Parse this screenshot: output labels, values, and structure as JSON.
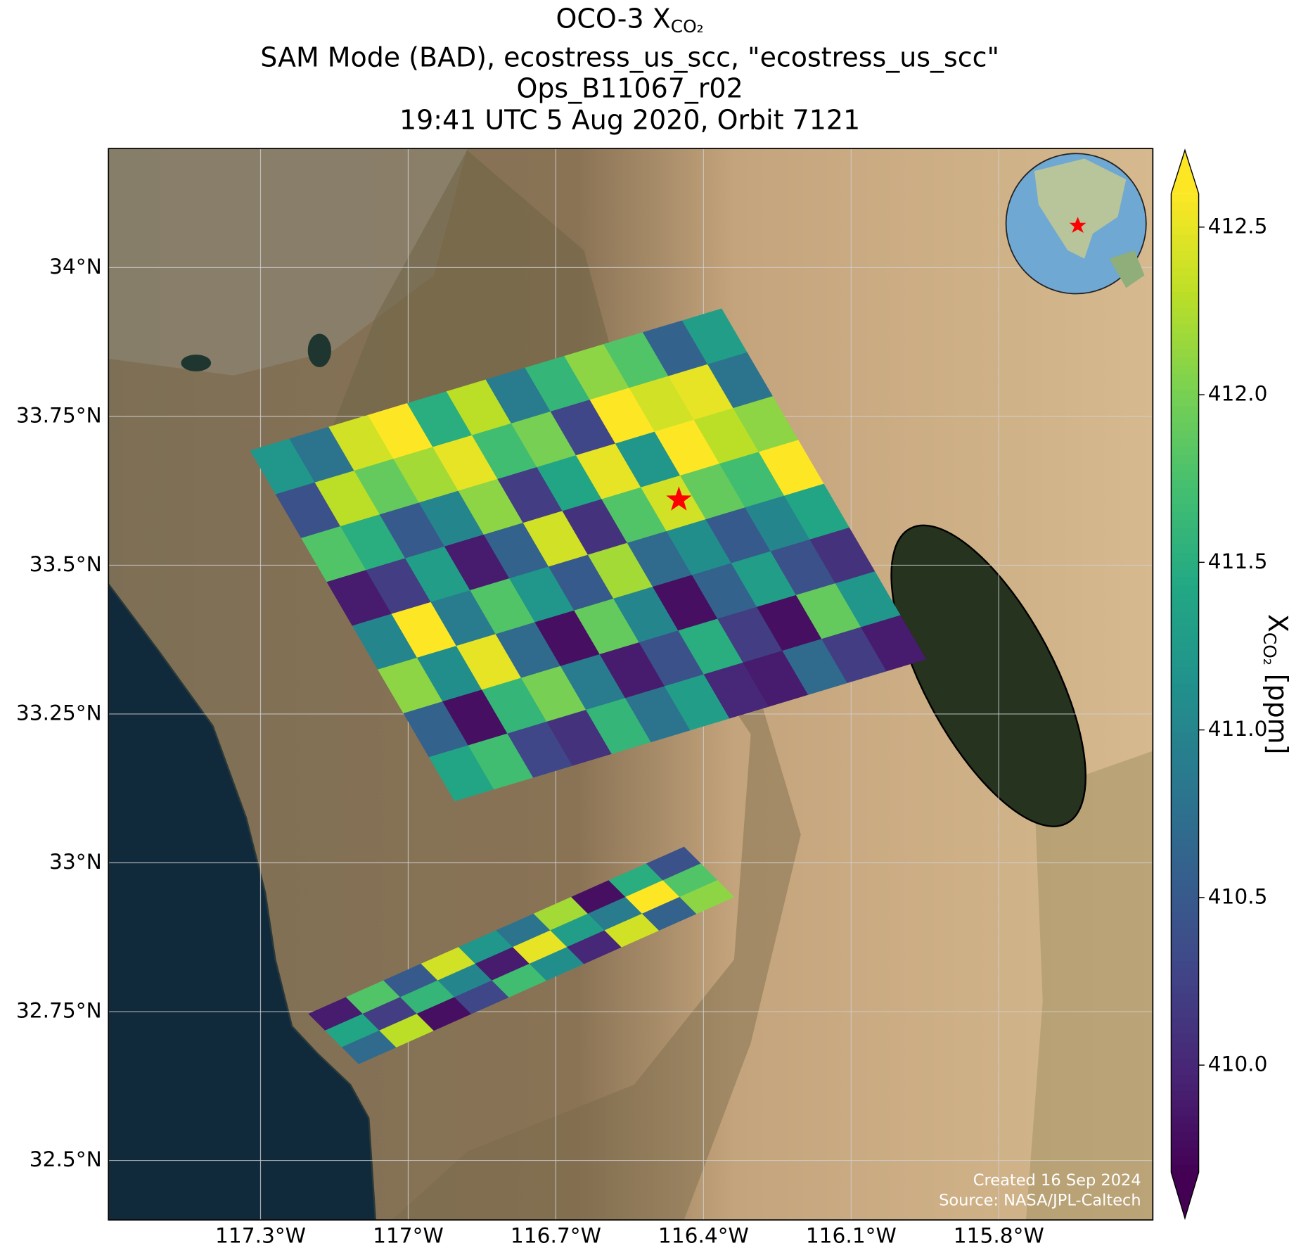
{
  "chart_data": {
    "type": "map",
    "title": "OCO-3 X",
    "title_subscript": "CO₂",
    "subtitles": [
      "SAM Mode (BAD), ecostress_us_scc, \"ecostress_us_scc\"",
      "Ops_B11067_r02",
      "19:41 UTC 5 Aug 2020, Orbit 7121"
    ],
    "xlim": [
      -117.609,
      -115.487
    ],
    "ylim": [
      32.4,
      34.2
    ],
    "xticks": [
      {
        "value": -117.3,
        "label": "117.3°W"
      },
      {
        "value": -117.0,
        "label": "117°W"
      },
      {
        "value": -116.7,
        "label": "116.7°W"
      },
      {
        "value": -116.4,
        "label": "116.4°W"
      },
      {
        "value": -116.1,
        "label": "116.1°W"
      },
      {
        "value": -115.8,
        "label": "115.8°W"
      }
    ],
    "yticks": [
      {
        "value": 32.5,
        "label": "32.5°N"
      },
      {
        "value": 32.75,
        "label": "32.75°N"
      },
      {
        "value": 33.0,
        "label": "33°N"
      },
      {
        "value": 33.25,
        "label": "33.25°N"
      },
      {
        "value": 33.5,
        "label": "33.5°N"
      },
      {
        "value": 33.75,
        "label": "33.75°N"
      },
      {
        "value": 34.0,
        "label": "34°N"
      }
    ],
    "grid": true,
    "colorbar": {
      "label": "X",
      "label_subscript": "CO₂",
      "label_unit": "[ppm]",
      "colormap": "viridis",
      "extend": "both",
      "clim": [
        409.68,
        412.6
      ],
      "ticks": [
        {
          "value": 410,
          "label": "410.0"
        },
        410.5,
        {
          "value": 411,
          "label": "411.0"
        },
        411.5,
        {
          "value": 412,
          "label": "412.0"
        },
        412.5
      ]
    },
    "swaths": [
      {
        "values": [
          [
            411.2,
            410.4,
            411.8,
            409.9,
            411.0,
            412.1,
            410.6,
            411.4
          ],
          [
            410.8,
            412.3,
            411.5,
            410.2,
            412.6,
            411.1,
            409.8,
            411.7
          ],
          [
            412.4,
            411.9,
            410.5,
            411.3,
            410.9,
            412.5,
            411.6,
            410.3
          ],
          [
            412.6,
            412.2,
            411.0,
            409.9,
            411.8,
            410.7,
            412.0,
            410.1
          ],
          [
            411.5,
            412.5,
            412.1,
            410.6,
            411.2,
            409.8,
            410.9,
            411.6
          ],
          [
            412.3,
            411.7,
            410.2,
            412.4,
            410.5,
            411.9,
            409.9,
            410.8
          ],
          [
            410.9,
            412.0,
            411.4,
            410.1,
            412.2,
            411.0,
            410.4,
            411.3
          ],
          [
            411.6,
            410.3,
            412.5,
            411.8,
            410.7,
            409.8,
            411.5,
            410.0
          ],
          [
            412.1,
            412.6,
            411.2,
            412.4,
            411.1,
            410.6,
            410.2,
            409.9
          ],
          [
            411.8,
            412.4,
            412.6,
            411.9,
            410.5,
            411.3,
            409.8,
            410.7
          ],
          [
            410.6,
            412.5,
            412.3,
            411.7,
            411.0,
            410.4,
            411.9,
            410.2
          ],
          [
            411.3,
            410.8,
            412.1,
            412.6,
            411.4,
            410.1,
            411.2,
            409.9
          ]
        ]
      },
      {
        "values": [
          [
            409.9,
            411.4,
            410.7
          ],
          [
            411.8,
            410.2,
            412.3
          ],
          [
            410.5,
            411.6,
            409.8
          ],
          [
            412.4,
            411.0,
            410.3
          ],
          [
            411.2,
            409.9,
            411.7
          ],
          [
            410.8,
            412.5,
            411.1
          ],
          [
            412.2,
            411.3,
            410.0
          ],
          [
            409.8,
            410.9,
            412.4
          ],
          [
            411.5,
            412.6,
            410.6
          ],
          [
            410.4,
            411.8,
            412.1
          ]
        ]
      }
    ],
    "target": {
      "lon": -116.45,
      "lat": 33.61,
      "color": "#ff0000"
    },
    "credits": [
      "Created 16 Sep 2024",
      "Source: NASA/JPL-Caltech"
    ]
  }
}
